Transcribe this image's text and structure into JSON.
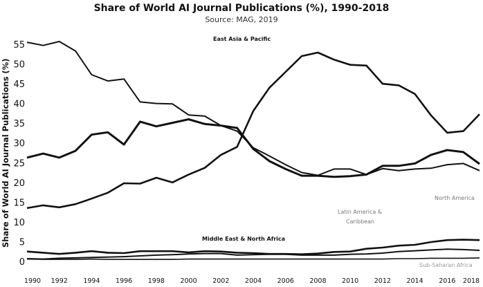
{
  "chart_data": {
    "type": "line",
    "title": "Share of World AI Journal Publications (%), 1990-2018",
    "subtitle": "Source: MAG, 2019",
    "xlabel": "",
    "ylabel": "Share of World AI Journal Publications (%)",
    "ylim": [
      0,
      55
    ],
    "xlim": [
      1990,
      2018
    ],
    "grid": false,
    "yticks": [
      "0",
      "5",
      "10",
      "15",
      "20",
      "25",
      "30",
      "35",
      "40",
      "45",
      "50",
      "55"
    ],
    "xticks": [
      "1990",
      "1992",
      "1994",
      "1996",
      "1998",
      "2000",
      "2002",
      "2004",
      "2006",
      "2008",
      "2010",
      "2012",
      "2014",
      "2016",
      "2018"
    ],
    "x": [
      1990,
      1991,
      1992,
      1993,
      1994,
      1995,
      1996,
      1997,
      1998,
      1999,
      2000,
      2001,
      2002,
      2003,
      2004,
      2005,
      2006,
      2007,
      2008,
      2009,
      2010,
      2011,
      2012,
      2013,
      2014,
      2015,
      2016,
      2017,
      2018
    ],
    "series": [
      {
        "name": "North America",
        "label_lines": [
          "North America"
        ],
        "values": [
          55.5,
          54.7,
          55.7,
          53.3,
          47.3,
          45.7,
          46.2,
          40.4,
          40.0,
          39.9,
          37.1,
          36.8,
          34.4,
          33.0,
          28.8,
          26.7,
          24.5,
          22.5,
          21.8,
          23.4,
          23.4,
          22.0,
          23.5,
          23.0,
          23.4,
          23.6,
          24.5,
          24.8,
          23.0
        ]
      },
      {
        "name": "",
        "label_lines": [],
        "values": [
          26.3,
          27.3,
          26.3,
          28.0,
          32.1,
          32.7,
          29.6,
          35.4,
          34.2,
          35.1,
          36.0,
          34.8,
          34.4,
          33.8,
          28.5,
          25.4,
          23.4,
          21.7,
          21.7,
          21.4,
          21.6,
          22.0,
          24.2,
          24.2,
          24.8,
          27.0,
          28.2,
          27.7,
          24.7
        ]
      },
      {
        "name": "East Asia & Pacific",
        "label_lines": [
          "East Asia & Pacific"
        ],
        "values": [
          13.5,
          14.2,
          13.7,
          14.5,
          15.9,
          17.4,
          19.8,
          19.7,
          21.2,
          20.0,
          22.0,
          23.7,
          27.0,
          29.0,
          38.1,
          44.0,
          48.0,
          52.0,
          52.9,
          51.1,
          49.8,
          49.6,
          45.0,
          44.6,
          42.4,
          37.0,
          32.6,
          33.0,
          37.3
        ]
      },
      {
        "name": "Middle East & North Africa",
        "label_lines": [
          "Middle East & North Africa"
        ],
        "values": [
          2.5,
          2.2,
          1.9,
          2.2,
          2.6,
          2.2,
          2.1,
          2.6,
          2.6,
          2.6,
          2.3,
          2.6,
          2.5,
          2.2,
          2.1,
          1.9,
          1.9,
          1.8,
          2.0,
          2.4,
          2.5,
          3.2,
          3.5,
          4.0,
          4.2,
          4.9,
          5.4,
          5.5,
          5.4
        ]
      },
      {
        "name": "Latin America & Caribbean",
        "label_lines": [
          "Latin America &",
          "Caribbean"
        ],
        "values": [
          0.7,
          0.6,
          0.8,
          0.9,
          1.0,
          1.1,
          1.2,
          1.4,
          1.6,
          1.7,
          1.9,
          2.0,
          2.0,
          1.6,
          1.7,
          1.8,
          1.8,
          1.6,
          1.6,
          1.6,
          1.8,
          1.9,
          2.1,
          2.5,
          2.7,
          2.9,
          3.1,
          3.0,
          2.8
        ]
      },
      {
        "name": "Sub-Saharan Africa",
        "label_lines": [
          "Sub-Saharan Africa"
        ],
        "values": [
          0.6,
          0.5,
          0.5,
          0.5,
          0.6,
          0.5,
          0.5,
          0.5,
          0.5,
          0.5,
          0.6,
          0.6,
          0.6,
          0.6,
          0.6,
          0.6,
          0.6,
          0.6,
          0.6,
          0.6,
          0.6,
          0.6,
          0.6,
          0.7,
          0.7,
          0.8,
          0.8,
          0.8,
          0.9
        ]
      }
    ],
    "line_color": "#111111"
  }
}
